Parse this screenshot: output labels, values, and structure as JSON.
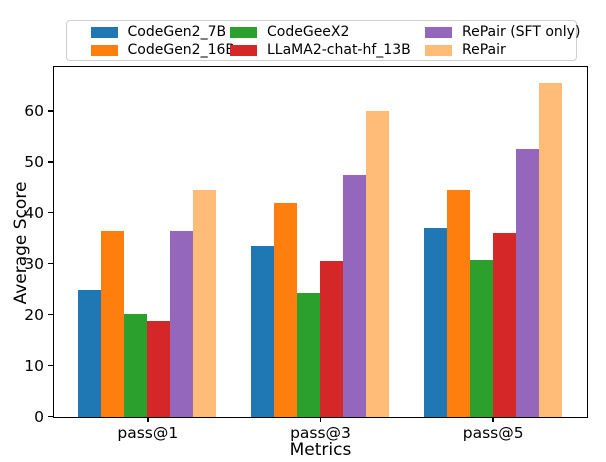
{
  "accent_colors": {
    "axis": "#000000",
    "legend_border": "#cfcfcf",
    "background": "#ffffff"
  },
  "chart_data": {
    "type": "bar",
    "title": "",
    "xlabel": "Metrics",
    "ylabel": "Average Score",
    "categories": [
      "pass@1",
      "pass@3",
      "pass@5"
    ],
    "series": [
      {
        "name": "CodeGen2_7B",
        "color": "#1f77b4",
        "values": [
          24.9,
          33.5,
          37.1
        ]
      },
      {
        "name": "CodeGen2_16B",
        "color": "#ff7f0e",
        "values": [
          36.6,
          42.1,
          44.5
        ]
      },
      {
        "name": "CodeGeeX2",
        "color": "#2ca02c",
        "values": [
          20.2,
          24.4,
          30.8
        ]
      },
      {
        "name": "LLaMA2-chat-hf_13B",
        "color": "#d62728",
        "values": [
          18.9,
          30.6,
          36.1
        ]
      },
      {
        "name": "RePair (SFT only)",
        "color": "#9467bd",
        "values": [
          36.5,
          47.6,
          52.7
        ]
      },
      {
        "name": "RePair",
        "color": "#ffbb78",
        "values": [
          44.5,
          60.1,
          65.6
        ]
      }
    ],
    "yticks": [
      0,
      10,
      20,
      30,
      40,
      50,
      60
    ],
    "ylim": [
      0,
      68.5
    ],
    "grid": false,
    "legend_position": "upper center above plot, 2 rows x 3 columns",
    "bar_group_width_fraction": 0.8,
    "x_unit_range": [
      -0.54,
      2.54
    ]
  }
}
